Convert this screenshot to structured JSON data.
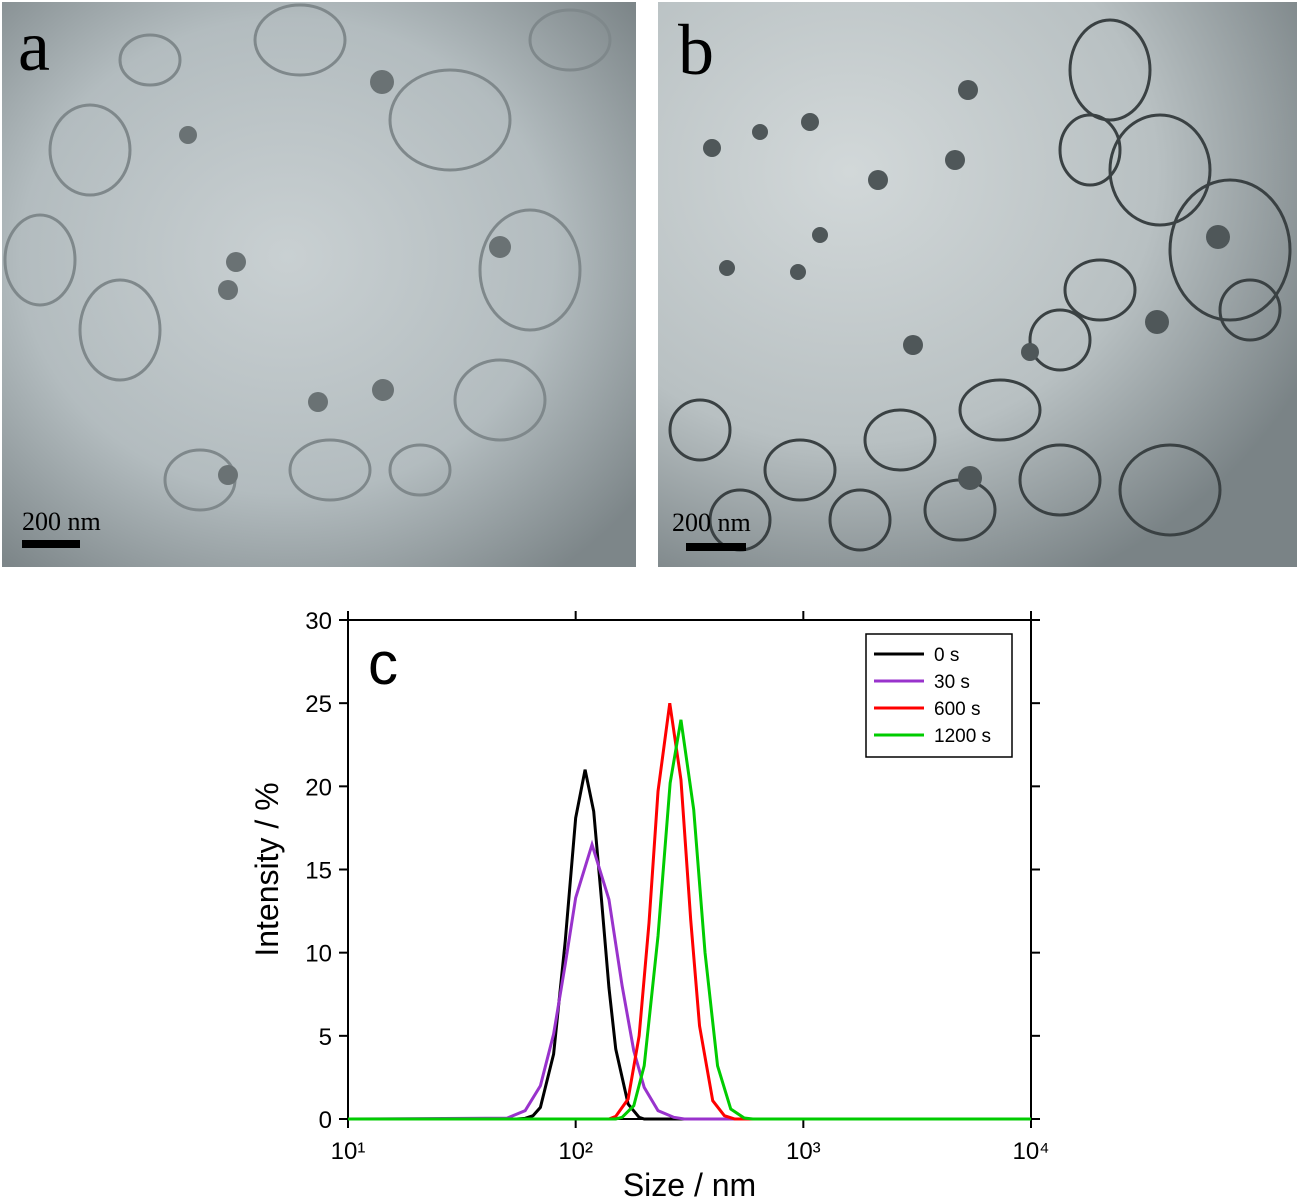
{
  "panels": [
    {
      "label": "a",
      "scale_bar": "200 nm"
    },
    {
      "label": "b",
      "scale_bar": "200 nm"
    }
  ],
  "chart_data": {
    "type": "line",
    "panel_label": "c",
    "x_label": "Size / nm",
    "y_label": "Intensity / %",
    "x_scale": "log",
    "xlim": [
      10,
      10000
    ],
    "xticks": [
      {
        "value": 10,
        "label": "10¹"
      },
      {
        "value": 100,
        "label": "10²"
      },
      {
        "value": 1000,
        "label": "10³"
      },
      {
        "value": 10000,
        "label": "10⁴"
      }
    ],
    "ylim": [
      0,
      30
    ],
    "yticks": [
      0,
      5,
      10,
      15,
      20,
      25,
      30
    ],
    "legend": "upper right",
    "series": [
      {
        "name": "0 s",
        "color": "#000000",
        "x": [
          10,
          55,
          60,
          65,
          70,
          80,
          90,
          100,
          110,
          120,
          130,
          140,
          150,
          170,
          190,
          200,
          10000
        ],
        "values": [
          0,
          0,
          0.04,
          0.2,
          0.7,
          3.9,
          10.7,
          18.1,
          21,
          18.5,
          13.1,
          7.9,
          4.2,
          0.9,
          0.1,
          0,
          0
        ]
      },
      {
        "name": "30 s",
        "color": "#9933cc",
        "x": [
          10,
          50,
          60,
          70,
          80,
          90,
          100,
          118,
          140,
          160,
          180,
          200,
          230,
          270,
          300,
          10000
        ],
        "values": [
          0,
          0.05,
          0.5,
          2.0,
          5.1,
          9.3,
          13.3,
          16.5,
          13.2,
          8.0,
          4.1,
          1.9,
          0.5,
          0.1,
          0,
          0
        ]
      },
      {
        "name": "600 s",
        "color": "#ff0000",
        "x": [
          10,
          140,
          150,
          170,
          190,
          210,
          230,
          259,
          290,
          320,
          350,
          400,
          450,
          500,
          10000
        ],
        "values": [
          0,
          0,
          0.16,
          1.2,
          5.0,
          11.8,
          19.7,
          25,
          20.4,
          12.0,
          5.6,
          1.1,
          0.2,
          0,
          0
        ]
      },
      {
        "name": "1200 s",
        "color": "#00cc00",
        "x": [
          10,
          150,
          160,
          180,
          200,
          230,
          260,
          290,
          330,
          370,
          420,
          480,
          550,
          600,
          10000
        ],
        "values": [
          0,
          0,
          0.1,
          0.8,
          3.2,
          11.0,
          20.2,
          24,
          18.6,
          10.0,
          3.2,
          0.6,
          0.06,
          0,
          0
        ]
      }
    ]
  }
}
